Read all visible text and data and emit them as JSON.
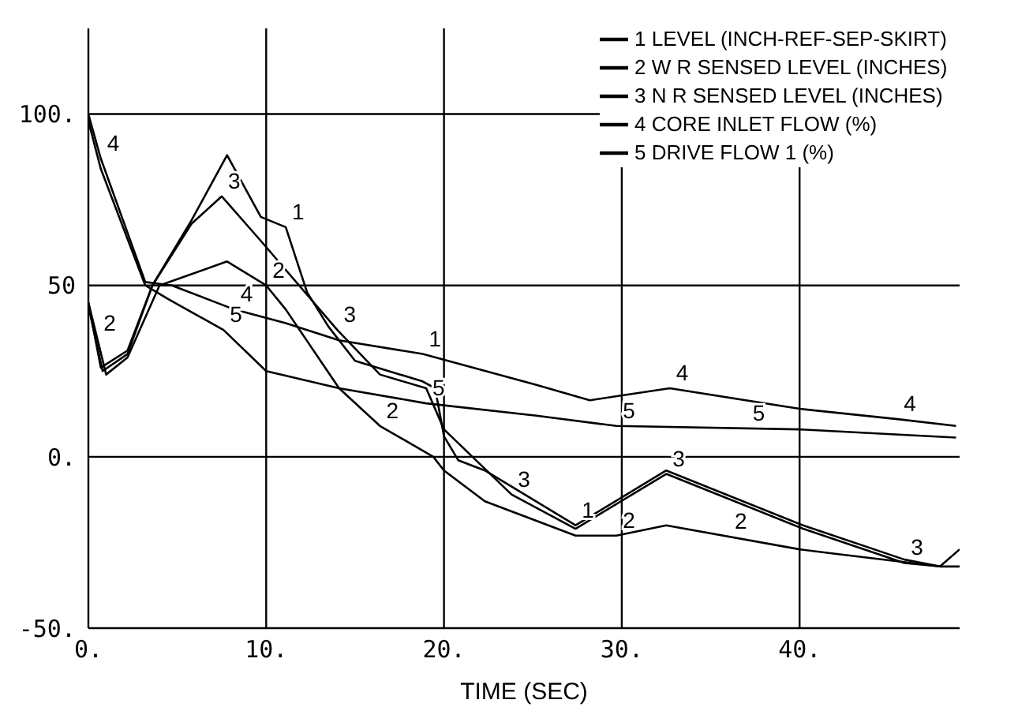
{
  "chart_data": {
    "type": "line",
    "xlabel": "TIME (SEC)",
    "xlim": [
      0,
      49
    ],
    "xticks": [
      {
        "value": 0,
        "label": "0."
      },
      {
        "value": 10,
        "label": "10."
      },
      {
        "value": 20,
        "label": "20."
      },
      {
        "value": 30,
        "label": "30."
      },
      {
        "value": 40,
        "label": "40."
      }
    ],
    "ylim": [
      -50,
      125
    ],
    "yticks": [
      {
        "value": -50,
        "label": "-50."
      },
      {
        "value": 0,
        "label": "0."
      },
      50,
      {
        "value": 100,
        "label": "100."
      }
    ],
    "grid": true,
    "legend": "top right",
    "marker": "none",
    "line_style": "solid",
    "series": [
      {
        "name": "1 LEVEL (INCH-REF-SEP-SKIRT)",
        "color": "#000000",
        "x": [
          0,
          0.7,
          2.2,
          3.6,
          5.8,
          7.8,
          9.7,
          11.1,
          12.3,
          13.5,
          15,
          18.8,
          19.5,
          20,
          20.8,
          22.3,
          27.4,
          32.5,
          40.2,
          45.9,
          47.9,
          49
        ],
        "values": [
          45,
          26,
          31,
          50,
          69,
          88,
          70,
          67,
          48,
          38,
          28,
          22,
          20,
          6,
          -1,
          -4,
          -20,
          -4,
          -20,
          -30,
          -32,
          -27
        ]
      },
      {
        "name": "2 W R SENSED LEVEL (INCHES)",
        "color": "#000000",
        "x": [
          0,
          1,
          2.2,
          4,
          7.8,
          10,
          11.1,
          14.1,
          16.4,
          19.4,
          20,
          22.3,
          27.4,
          29.7,
          32.5,
          40,
          42,
          47.9,
          49
        ],
        "values": [
          45,
          24,
          29,
          50,
          57,
          50,
          43,
          20,
          9,
          0,
          -4,
          -13,
          -23,
          -23,
          -20,
          -27,
          -28.3,
          -32,
          -32
        ]
      },
      {
        "name": "3 N R SENSED LEVEL (INCHES)",
        "color": "#000000",
        "x": [
          0,
          0.8,
          2.2,
          3.6,
          5.8,
          7.5,
          9.7,
          14,
          16.4,
          19,
          20,
          23.8,
          27.4,
          32.5,
          40.2,
          45.9,
          47.9
        ],
        "values": [
          44,
          25,
          30,
          50,
          68,
          76,
          63,
          37,
          24,
          20,
          8,
          -11,
          -21,
          -5,
          -21,
          -31,
          -32
        ]
      },
      {
        "name": "4 CORE INLET FLOW (%)",
        "color": "#000000",
        "x": [
          0,
          0.7,
          3.2,
          4.7,
          8.2,
          11.1,
          14.1,
          18.8,
          25.2,
          28.2,
          32.7,
          40,
          45.5,
          48.8
        ],
        "values": [
          100,
          87,
          51,
          50,
          43,
          39,
          34,
          30,
          21,
          16.5,
          20,
          14,
          11,
          9
        ]
      },
      {
        "name": "5 DRIVE FLOW 1 (%)",
        "color": "#000000",
        "x": [
          0,
          0.7,
          3.2,
          4.5,
          7.6,
          10,
          14.1,
          19,
          25.2,
          29.7,
          40,
          45.8,
          48.8
        ],
        "values": [
          98,
          84,
          50,
          46,
          37,
          25,
          20,
          15.6,
          12,
          9,
          8,
          6.4,
          5.6
        ]
      }
    ],
    "annotations": [
      {
        "text": "4",
        "x": 0.7,
        "y": 87
      },
      {
        "text": "2",
        "x": 0.5,
        "y": 34.5
      },
      {
        "text": "3",
        "x": 7.5,
        "y": 76
      },
      {
        "text": "1",
        "x": 11.1,
        "y": 67
      },
      {
        "text": "2",
        "x": 10,
        "y": 50
      },
      {
        "text": "4",
        "x": 8.2,
        "y": 43
      },
      {
        "text": "5",
        "x": 7.6,
        "y": 37
      },
      {
        "text": "3",
        "x": 14,
        "y": 37
      },
      {
        "text": "1",
        "x": 18.8,
        "y": 30
      },
      {
        "text": "5",
        "x": 19,
        "y": 15.6
      },
      {
        "text": "2",
        "x": 16.4,
        "y": 9
      },
      {
        "text": "3",
        "x": 23.8,
        "y": -11
      },
      {
        "text": "1",
        "x": 27.4,
        "y": -20
      },
      {
        "text": "2",
        "x": 29.7,
        "y": -23
      },
      {
        "text": "3",
        "x": 32.5,
        "y": -5
      },
      {
        "text": "4",
        "x": 32.7,
        "y": 20
      },
      {
        "text": "5",
        "x": 29.7,
        "y": 9
      },
      {
        "text": "4",
        "x": 45.5,
        "y": 11
      },
      {
        "text": "5",
        "x": 37,
        "y": 8.29
      },
      {
        "text": "2",
        "x": 36,
        "y": -23.3
      },
      {
        "text": "3",
        "x": 45.9,
        "y": -31
      }
    ]
  }
}
